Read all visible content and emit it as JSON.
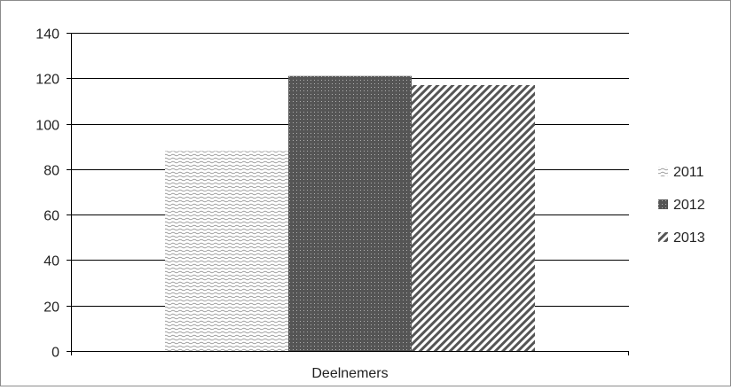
{
  "chart_data": {
    "type": "bar",
    "categories": [
      "Deelnemers"
    ],
    "series": [
      {
        "name": "2011",
        "values": [
          88
        ],
        "pattern": "wavy-light"
      },
      {
        "name": "2012",
        "values": [
          121
        ],
        "pattern": "dark-dotted"
      },
      {
        "name": "2013",
        "values": [
          117
        ],
        "pattern": "diagonal-stripes"
      }
    ],
    "title": "",
    "xlabel": "",
    "ylabel": "",
    "ylim": [
      0,
      140
    ],
    "yticks": [
      0,
      20,
      40,
      60,
      80,
      100,
      120,
      140
    ],
    "ytick_labels": [
      "0",
      "20",
      "40",
      "60",
      "80",
      "100",
      "120",
      "140"
    ],
    "grid": true,
    "legend_position": "right",
    "colors": {
      "grid": "#000000",
      "dark_fill": "#555555",
      "stripe": "#555555",
      "frame": "#8c8c8c"
    }
  }
}
